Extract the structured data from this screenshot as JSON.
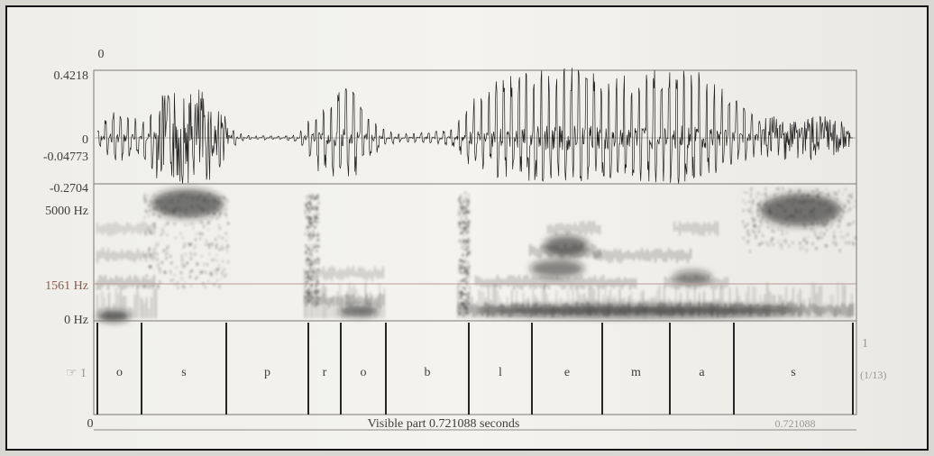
{
  "waveform": {
    "top_label": "0",
    "y_max": "0.4218",
    "y_zero": "0",
    "y_cursor": "-0.04773",
    "y_min": "-0.2704"
  },
  "spectrogram": {
    "freq_max": "5000 Hz",
    "freq_cursor": "1561 Hz",
    "freq_min": "0 Hz"
  },
  "tier": {
    "number_label": "☞ 1",
    "right_number": "1",
    "right_count": "(1/13)",
    "segments": [
      "o",
      "s",
      "p",
      "r",
      "o",
      "b",
      "l",
      "e",
      "m",
      "a",
      "s"
    ]
  },
  "time_axis": {
    "start": "0",
    "visible_part": "Visible part 0.721088 seconds",
    "end": "0.721088"
  }
}
